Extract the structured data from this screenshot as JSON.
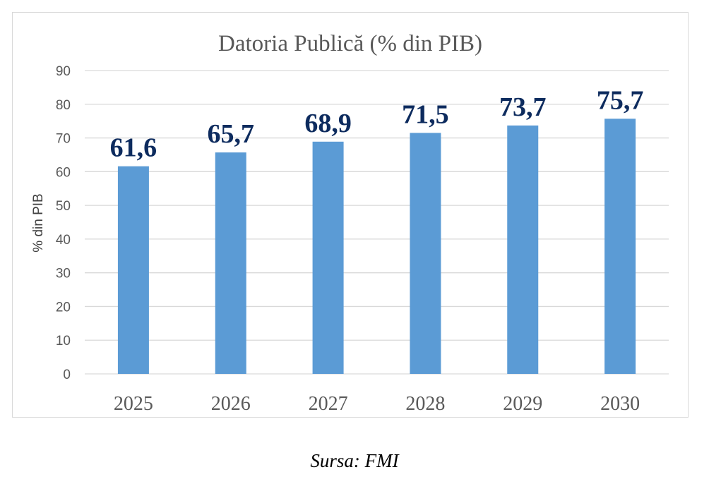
{
  "chart_data": {
    "type": "bar",
    "title": "Datoria Publică (% din PIB)",
    "ylabel": "% din PIB",
    "xlabel": "",
    "categories": [
      "2025",
      "2026",
      "2027",
      "2028",
      "2029",
      "2030"
    ],
    "values": [
      61.6,
      65.7,
      68.9,
      71.5,
      73.7,
      75.7
    ],
    "data_labels": [
      "61,6",
      "65,7",
      "68,9",
      "71,5",
      "73,7",
      "75,7"
    ],
    "yticks": [
      "0",
      "10",
      "20",
      "30",
      "40",
      "50",
      "60",
      "70",
      "80",
      "90"
    ],
    "ylim": [
      0,
      90
    ],
    "grid": true,
    "bar_color": "#5b9bd5",
    "label_color": "#0d2b5e"
  },
  "source": "Sursa: FMI"
}
